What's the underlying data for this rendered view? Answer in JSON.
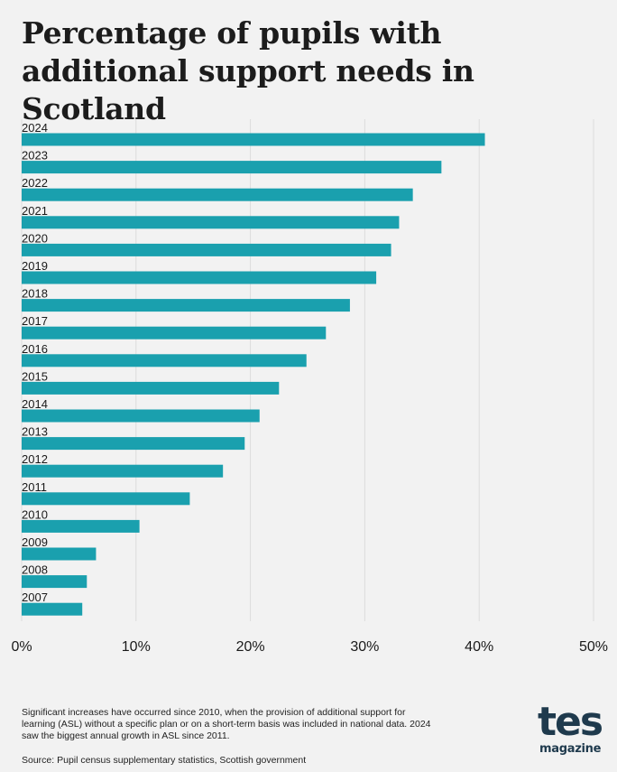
{
  "header": {
    "title": "Percentage of pupils with additional support needs in Scotland"
  },
  "chart_data": {
    "type": "bar",
    "orientation": "horizontal",
    "categories": [
      "2024",
      "2023",
      "2022",
      "2021",
      "2020",
      "2019",
      "2018",
      "2017",
      "2016",
      "2015",
      "2014",
      "2013",
      "2012",
      "2011",
      "2010",
      "2009",
      "2008",
      "2007"
    ],
    "values": [
      40.5,
      36.7,
      34.2,
      33.0,
      32.3,
      31.0,
      28.7,
      26.6,
      24.9,
      22.5,
      20.8,
      19.5,
      17.6,
      14.7,
      10.3,
      6.5,
      5.7,
      5.3
    ],
    "xlim": [
      0,
      50
    ],
    "xticks": [
      0,
      10,
      20,
      30,
      40,
      50
    ],
    "xtick_labels": [
      "0%",
      "10%",
      "20%",
      "30%",
      "40%",
      "50%"
    ],
    "grid": true,
    "bar_color": "#1aa0ae",
    "title": "Percentage of pupils with additional support needs in Scotland"
  },
  "footer": {
    "note": "Significant increases have occurred since 2010, when the provision of additional support for learning (ASL) without a specific plan or on a short-term basis was included in national data. 2024 saw the biggest annual growth in ASL since 2011.",
    "source": "Source: Pupil census supplementary statistics, Scottish government"
  },
  "logo": {
    "main": "tes",
    "sub": "magazine"
  }
}
